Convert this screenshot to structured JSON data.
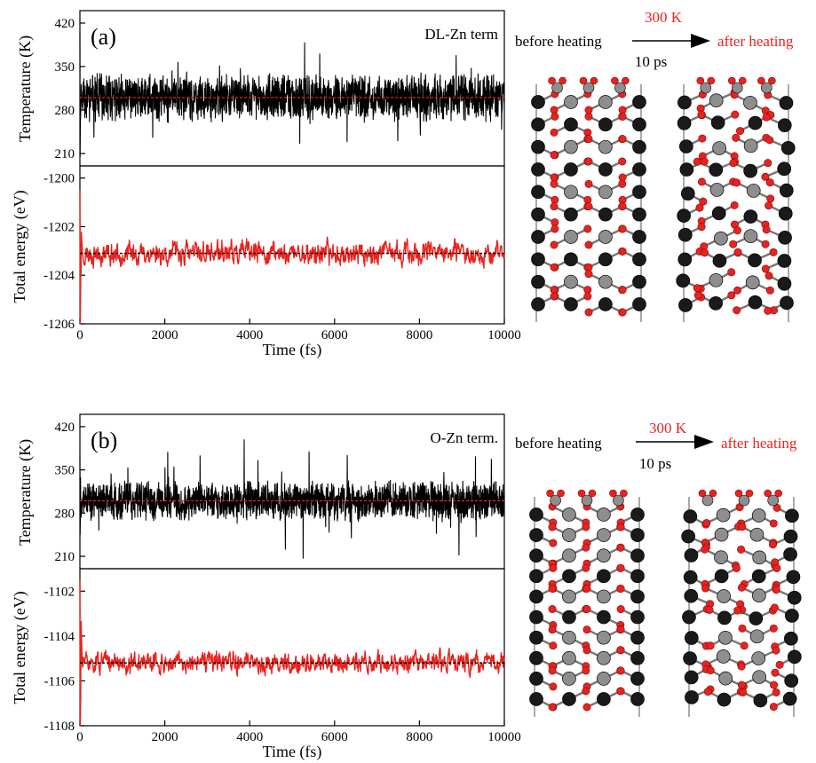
{
  "colors": {
    "temperature_trace": "#000000",
    "energy_trace": "#e8231f",
    "temperature_mean": "#e8231f",
    "energy_mean": "#000000",
    "oxygen_atom": "#e8231f",
    "zinc_atom": "#8e8e8e",
    "black_atom": "#1a1a1a",
    "arrow": "#000000",
    "heat_label": "#e8231f"
  },
  "panels": [
    {
      "id": "a",
      "label": "(a)",
      "termination": "DL-Zn term",
      "before_label": "before heating",
      "after_label": "after heating",
      "temp_label": "300 K",
      "time_label": "10 ps",
      "structure": {
        "type": "DL-Zn",
        "before": "ordered",
        "after": "distorted"
      }
    },
    {
      "id": "b",
      "label": "(b)",
      "termination": "O-Zn term.",
      "before_label": "before heating",
      "after_label": "after heating",
      "temp_label": "300 K",
      "time_label": "10 ps",
      "structure": {
        "type": "O-Zn",
        "before": "ordered",
        "after": "distorted"
      }
    }
  ],
  "chart_data": [
    {
      "type": "line",
      "panel": "a",
      "subplot": "temperature",
      "ylabel": "Temperature (K)",
      "x": [
        0,
        10000
      ],
      "xlim": [
        0,
        10000
      ],
      "ylim": [
        190,
        440
      ],
      "yticks": [
        210,
        280,
        350,
        420
      ],
      "mean": 300,
      "noise": {
        "start": 405,
        "min_start": 205,
        "amplitude": 28,
        "spikes": 60
      },
      "series": [
        {
          "values_range": [
            205,
            420
          ]
        }
      ]
    },
    {
      "type": "line",
      "panel": "a",
      "subplot": "energy",
      "ylabel": "Total energy (eV)",
      "xlabel": "Time (fs)",
      "xlim": [
        0,
        10000
      ],
      "ylim": [
        -1206,
        -1199.5
      ],
      "yticks": [
        -1206,
        -1204,
        -1202,
        -1200
      ],
      "xticks": [
        0,
        2000,
        4000,
        6000,
        8000,
        10000
      ],
      "mean": -1203.1,
      "noise": {
        "start": -1200.5,
        "min_start": -1206,
        "amplitude": 0.42
      },
      "series": [
        {
          "values_range": [
            -1206,
            -1200.5
          ]
        }
      ]
    },
    {
      "type": "line",
      "panel": "b",
      "subplot": "temperature",
      "ylabel": "Temperature (K)",
      "xlim": [
        0,
        10000
      ],
      "ylim": [
        190,
        440
      ],
      "yticks": [
        210,
        280,
        350,
        420
      ],
      "mean": 300,
      "noise": {
        "start": 375,
        "min_start": 245,
        "amplitude": 24,
        "spikes": 70
      },
      "series": [
        {
          "values_range": [
            240,
            375
          ]
        }
      ]
    },
    {
      "type": "line",
      "panel": "b",
      "subplot": "energy",
      "ylabel": "Total energy (eV)",
      "xlabel": "Time (fs)",
      "xlim": [
        0,
        10000
      ],
      "ylim": [
        -1108,
        -1101
      ],
      "yticks": [
        -1108,
        -1106,
        -1104,
        -1102
      ],
      "xticks": [
        0,
        2000,
        4000,
        6000,
        8000,
        10000
      ],
      "mean": -1105.2,
      "noise": {
        "start": -1101.5,
        "min_start": -1108,
        "amplitude": 0.42
      },
      "series": [
        {
          "values_range": [
            -1108,
            -1101.5
          ]
        }
      ]
    }
  ]
}
